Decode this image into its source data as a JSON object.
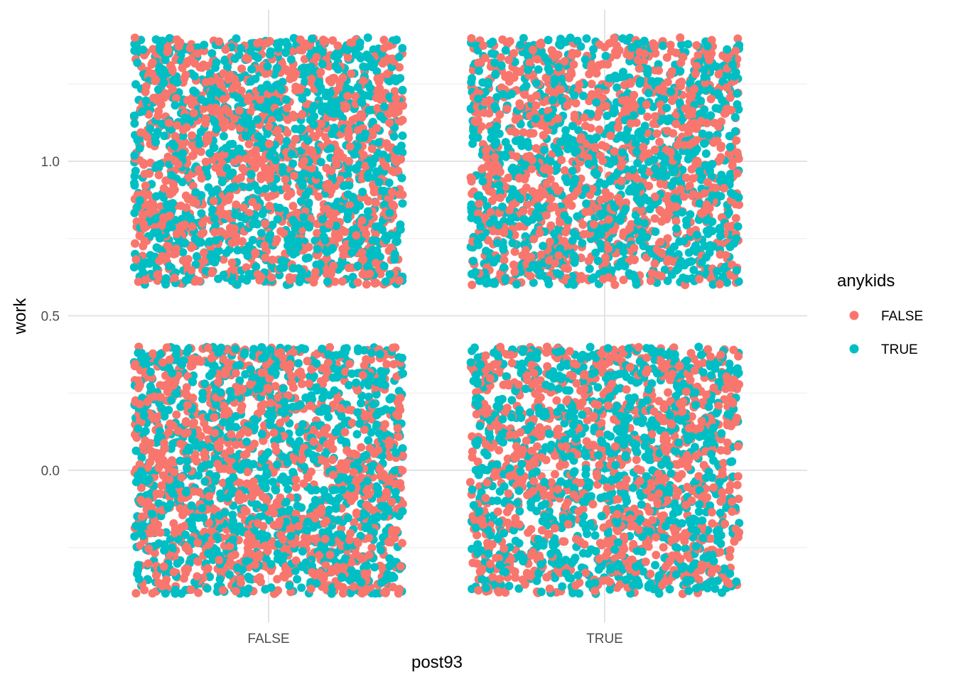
{
  "chart_data": {
    "type": "scatter",
    "subtype": "jitter",
    "xlabel": "post93",
    "ylabel": "work",
    "x_categories": [
      "FALSE",
      "TRUE"
    ],
    "y_ticks": [
      "0.0",
      "0.5",
      "1.0"
    ],
    "y_tick_values": [
      0.0,
      0.5,
      1.0
    ],
    "ylim": [
      -0.49,
      1.49
    ],
    "grid": true,
    "jitter": {
      "width": 0.4,
      "height": 0.4
    },
    "legend": {
      "title": "anykids",
      "position": "right",
      "entries": [
        {
          "label": "FALSE",
          "color": "#F8766D"
        },
        {
          "label": "TRUE",
          "color": "#00BFC4"
        }
      ]
    },
    "series": [
      {
        "name": "FALSE",
        "color": "#F8766D"
      },
      {
        "name": "TRUE",
        "color": "#00BFC4"
      }
    ],
    "groups": [
      {
        "x": "FALSE",
        "y": 1,
        "points_per_series": 1100
      },
      {
        "x": "TRUE",
        "y": 1,
        "points_per_series": 1000
      },
      {
        "x": "FALSE",
        "y": 0,
        "points_per_series": 1100
      },
      {
        "x": "TRUE",
        "y": 0,
        "points_per_series": 1000
      }
    ]
  }
}
